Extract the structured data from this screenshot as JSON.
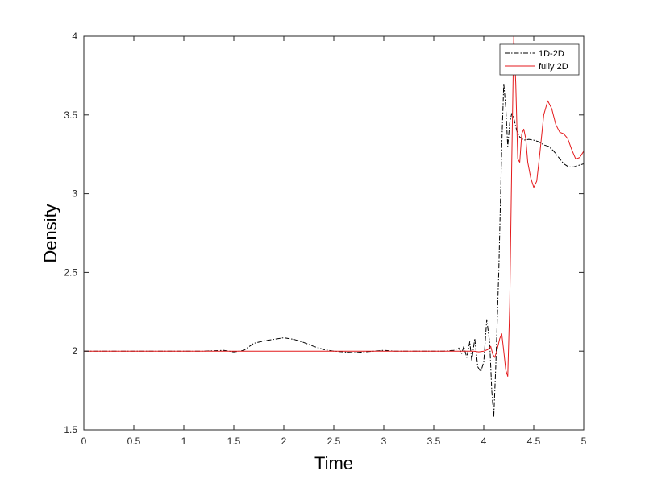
{
  "chart_data": {
    "type": "line",
    "title": "",
    "xlabel": "Time",
    "ylabel": "Density",
    "xlim": [
      0,
      5
    ],
    "ylim": [
      1.5,
      4
    ],
    "xticks": [
      0,
      0.5,
      1,
      1.5,
      2,
      2.5,
      3,
      3.5,
      4,
      4.5,
      5
    ],
    "xtick_labels": [
      "0",
      "0.5",
      "1",
      "1.5",
      "2",
      "2.5",
      "3",
      "3.5",
      "4",
      "4.5",
      "5"
    ],
    "yticks": [
      1.5,
      2,
      2.5,
      3,
      3.5,
      4
    ],
    "ytick_labels": [
      "1.5",
      "2",
      "2.5",
      "3",
      "3.5",
      "4"
    ],
    "grid": false,
    "legend_position": "top-right",
    "series": [
      {
        "name": "1D-2D",
        "color": "#000000",
        "style": "dash-dot",
        "points": [
          [
            0,
            2.0
          ],
          [
            1.0,
            2.0
          ],
          [
            1.2,
            2.0
          ],
          [
            1.4,
            2.005
          ],
          [
            1.5,
            1.995
          ],
          [
            1.6,
            2.005
          ],
          [
            1.7,
            2.05
          ],
          [
            1.8,
            2.065
          ],
          [
            1.9,
            2.075
          ],
          [
            2.0,
            2.085
          ],
          [
            2.1,
            2.075
          ],
          [
            2.2,
            2.055
          ],
          [
            2.3,
            2.03
          ],
          [
            2.4,
            2.01
          ],
          [
            2.5,
            2.0
          ],
          [
            2.6,
            1.995
          ],
          [
            2.7,
            1.99
          ],
          [
            2.8,
            1.995
          ],
          [
            2.9,
            2.0
          ],
          [
            3.0,
            2.005
          ],
          [
            3.1,
            2.0
          ],
          [
            3.3,
            2.0
          ],
          [
            3.5,
            2.0
          ],
          [
            3.6,
            2.0
          ],
          [
            3.7,
            2.005
          ],
          [
            3.75,
            2.02
          ],
          [
            3.78,
            1.985
          ],
          [
            3.8,
            2.03
          ],
          [
            3.83,
            1.96
          ],
          [
            3.86,
            2.06
          ],
          [
            3.88,
            1.94
          ],
          [
            3.91,
            2.08
          ],
          [
            3.94,
            1.9
          ],
          [
            3.97,
            1.87
          ],
          [
            4.0,
            1.93
          ],
          [
            4.03,
            2.2
          ],
          [
            4.06,
            2.05
          ],
          [
            4.08,
            1.75
          ],
          [
            4.1,
            1.58
          ],
          [
            4.12,
            1.9
          ],
          [
            4.15,
            2.5
          ],
          [
            4.18,
            3.3
          ],
          [
            4.2,
            3.7
          ],
          [
            4.22,
            3.55
          ],
          [
            4.24,
            3.3
          ],
          [
            4.26,
            3.45
          ],
          [
            4.28,
            3.51
          ],
          [
            4.3,
            3.48
          ],
          [
            4.33,
            3.4
          ],
          [
            4.36,
            3.36
          ],
          [
            4.4,
            3.34
          ],
          [
            4.45,
            3.345
          ],
          [
            4.5,
            3.34
          ],
          [
            4.55,
            3.33
          ],
          [
            4.6,
            3.31
          ],
          [
            4.65,
            3.3
          ],
          [
            4.7,
            3.27
          ],
          [
            4.75,
            3.23
          ],
          [
            4.8,
            3.19
          ],
          [
            4.85,
            3.17
          ],
          [
            4.9,
            3.17
          ],
          [
            4.95,
            3.18
          ],
          [
            5.0,
            3.19
          ]
        ]
      },
      {
        "name": "fully 2D",
        "color": "#e41a1c",
        "style": "solid",
        "points": [
          [
            0,
            2.0
          ],
          [
            1.0,
            2.0
          ],
          [
            2.0,
            2.0
          ],
          [
            3.0,
            2.0
          ],
          [
            3.8,
            2.0
          ],
          [
            3.9,
            2.0
          ],
          [
            3.95,
            1.995
          ],
          [
            4.0,
            2.0
          ],
          [
            4.04,
            2.01
          ],
          [
            4.07,
            2.03
          ],
          [
            4.09,
            1.98
          ],
          [
            4.11,
            1.96
          ],
          [
            4.13,
            2.0
          ],
          [
            4.16,
            2.08
          ],
          [
            4.18,
            2.11
          ],
          [
            4.2,
            2.0
          ],
          [
            4.22,
            1.88
          ],
          [
            4.24,
            1.84
          ],
          [
            4.26,
            2.3
          ],
          [
            4.28,
            3.2
          ],
          [
            4.3,
            4.0
          ],
          [
            4.32,
            3.7
          ],
          [
            4.34,
            3.22
          ],
          [
            4.36,
            3.2
          ],
          [
            4.38,
            3.38
          ],
          [
            4.4,
            3.41
          ],
          [
            4.42,
            3.35
          ],
          [
            4.44,
            3.2
          ],
          [
            4.47,
            3.1
          ],
          [
            4.5,
            3.04
          ],
          [
            4.53,
            3.08
          ],
          [
            4.56,
            3.25
          ],
          [
            4.6,
            3.5
          ],
          [
            4.64,
            3.59
          ],
          [
            4.68,
            3.54
          ],
          [
            4.72,
            3.44
          ],
          [
            4.76,
            3.39
          ],
          [
            4.8,
            3.38
          ],
          [
            4.84,
            3.35
          ],
          [
            4.88,
            3.28
          ],
          [
            4.92,
            3.22
          ],
          [
            4.96,
            3.23
          ],
          [
            5.0,
            3.27
          ]
        ]
      }
    ]
  }
}
